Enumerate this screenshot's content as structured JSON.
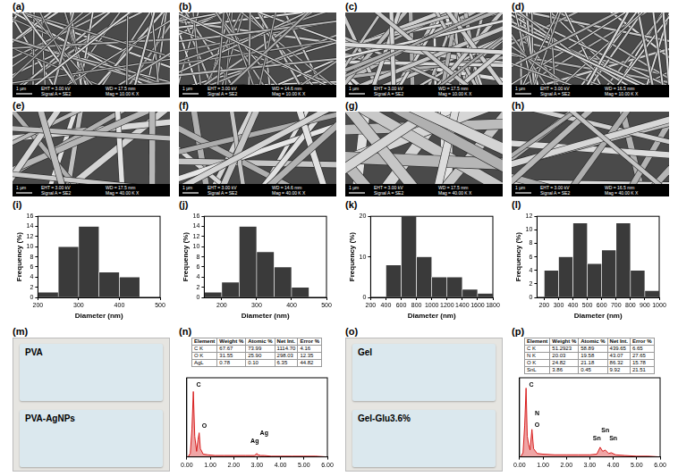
{
  "sem_images": [
    {
      "panel": "(a)",
      "scale_bar": "1 µm",
      "info": [
        "EHT = 3.00 kV",
        "WD = 17.5 mm",
        "Signal A = SE2",
        "Mag = 10.00 K X"
      ]
    },
    {
      "panel": "(b)",
      "scale_bar": "1 µm",
      "info": [
        "EHT = 3.00 kV",
        "WD = 14.6 mm",
        "Signal A = SE2",
        "Mag = 10.00 K X"
      ]
    },
    {
      "panel": "(c)",
      "scale_bar": "1 µm",
      "info": [
        "EHT = 3.00 kV",
        "WD = 17.5 mm",
        "Signal A = SE2",
        "Mag = 10.00 K X"
      ]
    },
    {
      "panel": "(d)",
      "scale_bar": "1 µm",
      "info": [
        "EHT = 3.00 kV",
        "WD = 16.5 mm",
        "Signal A = SE2",
        "Mag = 10.00 K X"
      ]
    },
    {
      "panel": "(e)",
      "scale_bar": "1 µm",
      "info": [
        "EHT = 3.00 kV",
        "WD = 17.5 mm",
        "Signal A = SE2",
        "Mag = 40.00 K X"
      ]
    },
    {
      "panel": "(f)",
      "scale_bar": "1 µm",
      "info": [
        "EHT = 3.00 kV",
        "WD = 14.6 mm",
        "Signal A = SE2",
        "Mag = 40.00 K X"
      ]
    },
    {
      "panel": "(g)",
      "scale_bar": "1 µm",
      "info": [
        "EHT = 3.00 kV",
        "WD = 17.5 mm",
        "Signal A = SE2",
        "Mag = 40.00 K X"
      ]
    },
    {
      "panel": "(h)",
      "scale_bar": "1 µm",
      "info": [
        "EHT = 3.00 kV",
        "WD = 16.5 mm",
        "Signal A = SE2",
        "Mag = 40.00 K X"
      ]
    }
  ],
  "chart_data": [
    {
      "panel": "(i)",
      "type": "histogram",
      "x_label": "Diameter (nm)",
      "y_label": "Frequency (%)",
      "bins": [
        200,
        250,
        300,
        350,
        400,
        450
      ],
      "values": [
        1,
        10,
        14,
        5,
        4
      ],
      "color": "#3a3a3a",
      "xlim": [
        200,
        500
      ],
      "xticks": [
        200,
        300,
        400,
        500
      ],
      "ylim": [
        0,
        16
      ],
      "yticks": [
        0,
        2,
        4,
        6,
        8,
        10,
        12,
        14,
        16
      ],
      "grid": false
    },
    {
      "panel": "(j)",
      "type": "histogram",
      "x_label": "Diameter (nm)",
      "y_label": "Frequency (%)",
      "bins": [
        150,
        200,
        250,
        300,
        350,
        400,
        450
      ],
      "values": [
        1,
        3,
        14,
        9,
        6,
        2
      ],
      "color": "#3a3a3a",
      "xlim": [
        150,
        500
      ],
      "xticks": [
        200,
        300,
        400,
        500
      ],
      "ylim": [
        0,
        16
      ],
      "yticks": [
        0,
        2,
        4,
        6,
        8,
        10,
        12,
        14,
        16
      ],
      "grid": false
    },
    {
      "panel": "(k)",
      "type": "histogram",
      "x_label": "Diameter (nm)",
      "y_label": "Frequency (%)",
      "bins": [
        400,
        600,
        800,
        1000,
        1200,
        1400,
        1600,
        1800
      ],
      "values": [
        8,
        20,
        10,
        5,
        5,
        2,
        1
      ],
      "color": "#3a3a3a",
      "xlim": [
        200,
        1800
      ],
      "xticks": [
        200,
        400,
        600,
        800,
        1000,
        1200,
        1400,
        1600,
        1800
      ],
      "ylim": [
        0,
        20
      ],
      "yticks": [
        0,
        10,
        20
      ],
      "grid": false
    },
    {
      "panel": "(l)",
      "type": "histogram",
      "x_label": "Diameter (nm)",
      "y_label": "Frequency (%)",
      "bins": [
        200,
        300,
        400,
        500,
        600,
        700,
        800,
        900,
        1000
      ],
      "values": [
        4,
        6,
        11,
        5,
        7,
        11,
        4,
        1
      ],
      "color": "#3a3a3a",
      "xlim": [
        150,
        1000
      ],
      "xticks": [
        200,
        300,
        400,
        500,
        600,
        700,
        800,
        900,
        1000
      ],
      "ylim": [
        0,
        12
      ],
      "yticks": [
        0,
        2,
        4,
        6,
        8,
        10,
        12
      ],
      "grid": false
    },
    {
      "panel": "(n)",
      "type": "line",
      "color": "#d81e1e",
      "tick_labels": "x",
      "grid": false,
      "x": [
        0.05,
        0.15,
        0.22,
        0.28,
        0.34,
        0.42,
        0.48,
        0.53,
        0.58,
        0.7,
        0.9,
        1.2,
        1.6,
        2.0,
        2.5,
        2.9,
        2.98,
        3.05,
        3.15,
        3.3,
        3.6,
        4.0,
        4.5,
        5.0,
        5.5,
        6.0
      ],
      "values": [
        0,
        5,
        40,
        95,
        30,
        8,
        25,
        35,
        12,
        4,
        3,
        2,
        2,
        2,
        2,
        2,
        5,
        3,
        2,
        2,
        1,
        1,
        1,
        1,
        1,
        0
      ],
      "xlim": [
        0,
        6
      ],
      "xticks": [
        {
          "value": 0,
          "label": "0.00"
        },
        {
          "value": 1,
          "label": "1.00"
        },
        {
          "value": 2,
          "label": "2.00"
        },
        {
          "value": 3,
          "label": "3.00"
        },
        {
          "value": 4,
          "label": "4.00"
        },
        {
          "value": 5,
          "label": "5.00"
        },
        {
          "value": 6,
          "label": "6.00"
        }
      ],
      "ylim": [
        0,
        115
      ],
      "annotations": [
        {
          "text": "C",
          "x": 0.5,
          "y": 100
        },
        {
          "text": "O",
          "x": 0.75,
          "y": 40
        },
        {
          "text": "Ag",
          "x": 2.9,
          "y": 18
        },
        {
          "text": "Ag",
          "x": 3.3,
          "y": 30
        }
      ],
      "table": {
        "columns": [
          "Element",
          "Weight %",
          "Atomic %",
          "Net Int.",
          "Error %"
        ],
        "rows": [
          [
            "C K",
            "67.67",
            "73.99",
            "1114.70",
            "4.16"
          ],
          [
            "O K",
            "31.55",
            "25.90",
            "298.03",
            "12.35"
          ],
          [
            "AgL",
            "0.78",
            "0.10",
            "6.35",
            "44.82"
          ]
        ]
      }
    },
    {
      "panel": "(p)",
      "type": "line",
      "color": "#d81e1e",
      "tick_labels": "x",
      "grid": false,
      "x": [
        0.05,
        0.15,
        0.22,
        0.28,
        0.33,
        0.39,
        0.45,
        0.53,
        0.6,
        0.75,
        1.0,
        1.5,
        2.0,
        2.5,
        3.0,
        3.3,
        3.44,
        3.55,
        3.66,
        3.8,
        3.92,
        4.1,
        4.5,
        5.0,
        5.5,
        6.0
      ],
      "values": [
        0,
        6,
        45,
        100,
        30,
        18,
        10,
        40,
        12,
        5,
        4,
        3,
        3,
        3,
        3,
        4,
        14,
        8,
        10,
        5,
        6,
        3,
        2,
        1,
        1,
        0
      ],
      "xlim": [
        0,
        6
      ],
      "xticks": [
        {
          "value": 0,
          "label": "0.00"
        },
        {
          "value": 1,
          "label": "1.00"
        },
        {
          "value": 2,
          "label": "2.00"
        },
        {
          "value": 3,
          "label": "3.00"
        },
        {
          "value": 4,
          "label": "4.00"
        },
        {
          "value": 5,
          "label": "5.00"
        },
        {
          "value": 6,
          "label": "6.00"
        }
      ],
      "ylim": [
        0,
        115
      ],
      "annotations": [
        {
          "text": "C",
          "x": 0.5,
          "y": 100
        },
        {
          "text": "N",
          "x": 0.75,
          "y": 58
        },
        {
          "text": "O",
          "x": 0.75,
          "y": 42
        },
        {
          "text": "Sn",
          "x": 3.3,
          "y": 22
        },
        {
          "text": "Sn",
          "x": 3.66,
          "y": 34
        },
        {
          "text": "Sn",
          "x": 4.0,
          "y": 22
        }
      ],
      "table": {
        "columns": [
          "Element",
          "Weight %",
          "Atomic %",
          "Net Int.",
          "Error %"
        ],
        "rows": [
          [
            "C K",
            "51.2923",
            "58.89",
            "439.65",
            "6.65"
          ],
          [
            "N K",
            "20.03",
            "19.58",
            "43.07",
            "27.65"
          ],
          [
            "O K",
            "24.82",
            "21.18",
            "86.32",
            "15.78"
          ],
          [
            "SnL",
            "3.86",
            "0.45",
            "9.92",
            "21.51"
          ]
        ]
      }
    }
  ],
  "photos": [
    {
      "panel": "(m)",
      "labels": [
        "PVA",
        "PVA-AgNPs"
      ]
    },
    {
      "panel": "(o)",
      "labels": [
        "Gel",
        "Gel-Glu3.6%"
      ]
    }
  ]
}
